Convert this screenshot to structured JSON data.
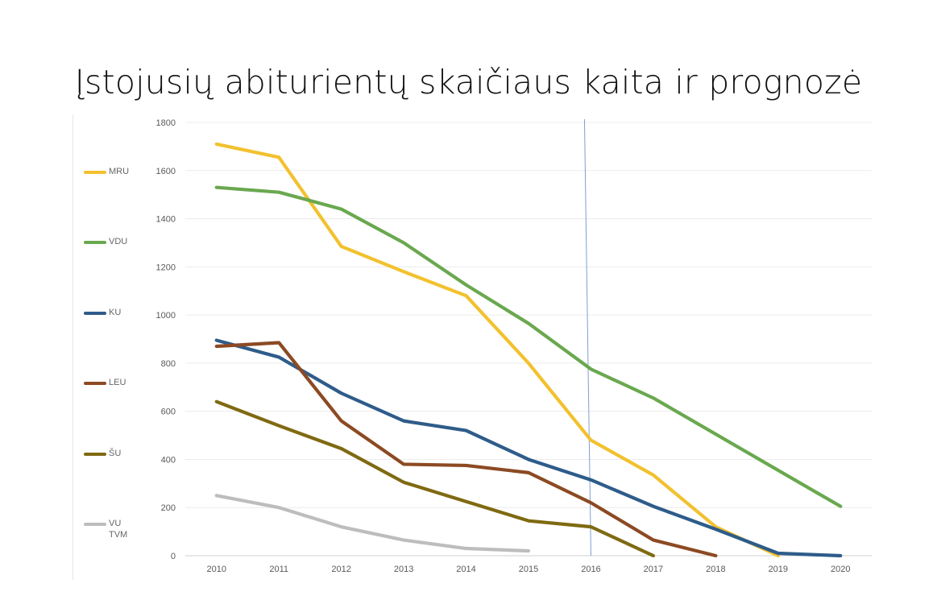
{
  "title": "Įstojusių abiturientų skaičiaus kaita ir prognozė",
  "chart_data": {
    "type": "line",
    "x": [
      2010,
      2011,
      2012,
      2013,
      2014,
      2015,
      2016,
      2017,
      2018,
      2019,
      2020
    ],
    "xlabel": "",
    "ylabel": "",
    "ylim": [
      0,
      1800
    ],
    "yticks": [
      0,
      200,
      400,
      600,
      800,
      1000,
      1200,
      1400,
      1600,
      1800
    ],
    "grid": true,
    "legend_position": "left",
    "marker_line_at_x": 2016,
    "series": [
      {
        "name": "MRU",
        "color": "#f2c12e",
        "values": [
          1710,
          1655,
          1285,
          1180,
          1080,
          800,
          480,
          335,
          120,
          0,
          null
        ]
      },
      {
        "name": "VDU",
        "color": "#6aa84f",
        "values": [
          1530,
          1510,
          1440,
          1300,
          1125,
          965,
          775,
          655,
          505,
          355,
          205
        ]
      },
      {
        "name": "KU",
        "color": "#2e5c8a",
        "values": [
          895,
          825,
          675,
          560,
          520,
          400,
          315,
          205,
          110,
          10,
          0
        ]
      },
      {
        "name": "LEU",
        "color": "#8c4a23",
        "values": [
          870,
          885,
          560,
          380,
          375,
          345,
          220,
          65,
          0,
          null,
          null
        ]
      },
      {
        "name": "ŠU",
        "color": "#7f6a12",
        "values": [
          640,
          540,
          445,
          305,
          225,
          145,
          120,
          0,
          null,
          null,
          null
        ]
      },
      {
        "name": "VU\nTVM",
        "color": "#bdbdbd",
        "values": [
          250,
          200,
          120,
          65,
          30,
          20,
          null,
          null,
          null,
          null,
          null
        ]
      }
    ]
  }
}
